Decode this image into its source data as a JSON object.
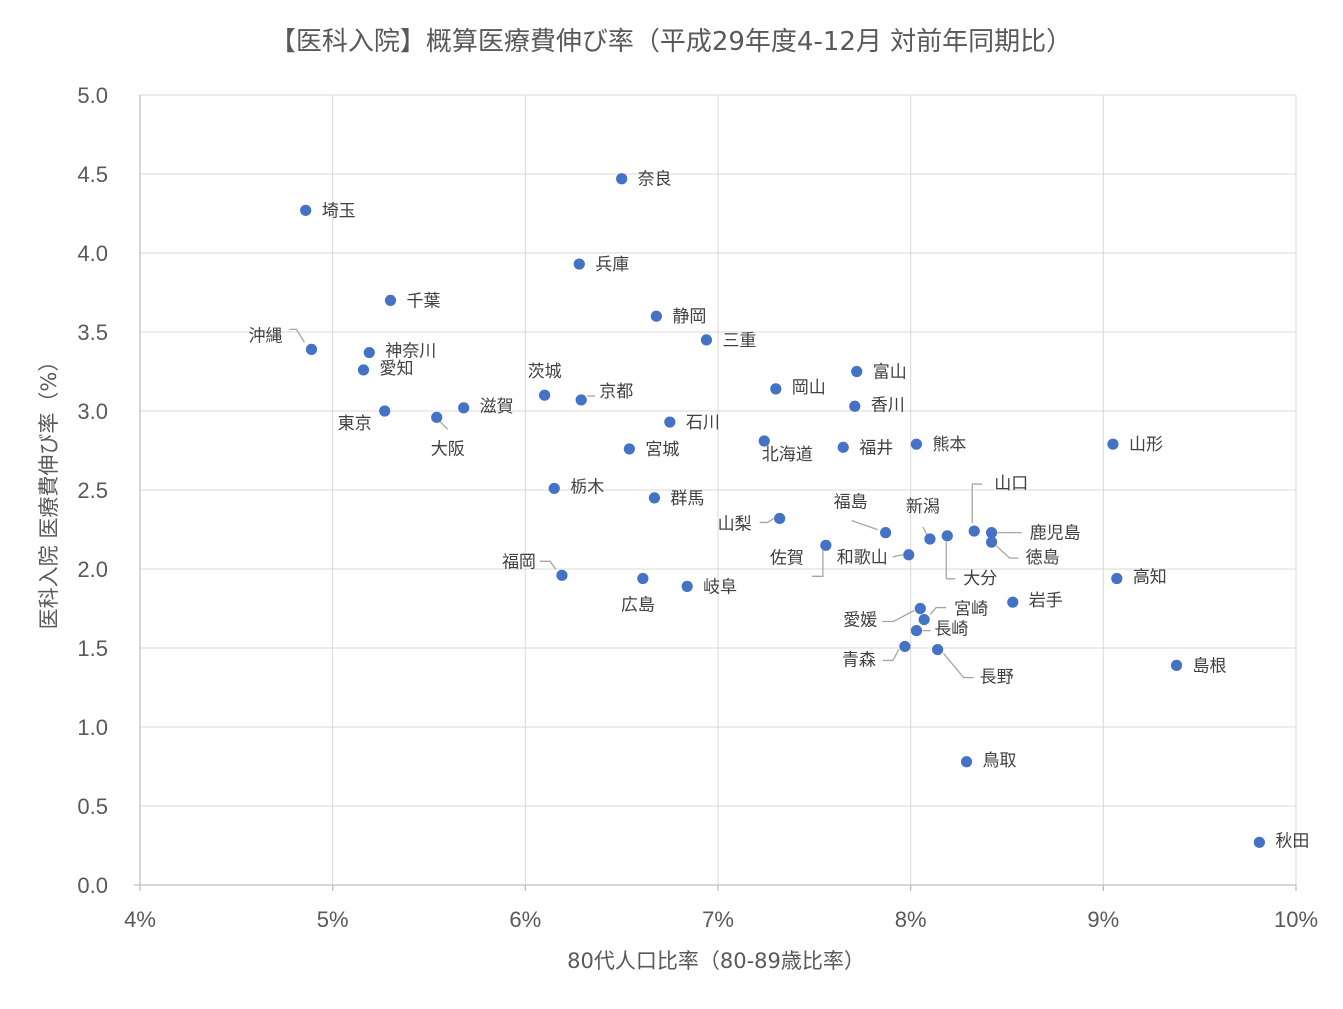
{
  "chart_data": {
    "type": "scatter",
    "title": "【医科入院】概算医療費伸び率（平成29年度4-12月 対前年同期比）",
    "xlabel": "80代人口比率（80-89歳比率）",
    "ylabel": "医科入院 医療費伸び率（%）",
    "xlim": [
      0.04,
      0.1
    ],
    "ylim": [
      0.0,
      5.0
    ],
    "x_ticks": [
      "4%",
      "5%",
      "6%",
      "7%",
      "8%",
      "9%",
      "10%"
    ],
    "y_ticks": [
      "0.0",
      "0.5",
      "1.0",
      "1.5",
      "2.0",
      "2.5",
      "3.0",
      "3.5",
      "4.0",
      "4.5",
      "5.0"
    ],
    "grid": true,
    "marker_color": "#4472C4",
    "points": [
      {
        "name": "奈良",
        "x": 0.065,
        "y": 4.47
      },
      {
        "name": "埼玉",
        "x": 0.0486,
        "y": 4.27
      },
      {
        "name": "兵庫",
        "x": 0.0628,
        "y": 3.93
      },
      {
        "name": "千葉",
        "x": 0.053,
        "y": 3.7
      },
      {
        "name": "静岡",
        "x": 0.0668,
        "y": 3.6
      },
      {
        "name": "三重",
        "x": 0.0694,
        "y": 3.45
      },
      {
        "name": "沖縄",
        "x": 0.0489,
        "y": 3.39
      },
      {
        "name": "神奈川",
        "x": 0.0519,
        "y": 3.37
      },
      {
        "name": "愛知",
        "x": 0.0516,
        "y": 3.26
      },
      {
        "name": "富山",
        "x": 0.0772,
        "y": 3.25
      },
      {
        "name": "茨城",
        "x": 0.061,
        "y": 3.1
      },
      {
        "name": "京都",
        "x": 0.0629,
        "y": 3.07
      },
      {
        "name": "岡山",
        "x": 0.073,
        "y": 3.14
      },
      {
        "name": "香川",
        "x": 0.0771,
        "y": 3.03
      },
      {
        "name": "滋賀",
        "x": 0.0568,
        "y": 3.02
      },
      {
        "name": "東京",
        "x": 0.0527,
        "y": 3.0
      },
      {
        "name": "大阪",
        "x": 0.0554,
        "y": 2.96
      },
      {
        "name": "石川",
        "x": 0.0675,
        "y": 2.93
      },
      {
        "name": "北海道",
        "x": 0.0724,
        "y": 2.81
      },
      {
        "name": "熊本",
        "x": 0.0803,
        "y": 2.79
      },
      {
        "name": "山形",
        "x": 0.0905,
        "y": 2.79
      },
      {
        "name": "福井",
        "x": 0.0765,
        "y": 2.77
      },
      {
        "name": "宮城",
        "x": 0.0654,
        "y": 2.76
      },
      {
        "name": "栃木",
        "x": 0.0615,
        "y": 2.51
      },
      {
        "name": "群馬",
        "x": 0.0667,
        "y": 2.45
      },
      {
        "name": "山梨",
        "x": 0.0732,
        "y": 2.32
      },
      {
        "name": "山口",
        "x": 0.0833,
        "y": 2.24
      },
      {
        "name": "鹿児島",
        "x": 0.0842,
        "y": 2.23
      },
      {
        "name": "福島",
        "x": 0.0787,
        "y": 2.23
      },
      {
        "name": "大分",
        "x": 0.0819,
        "y": 2.21
      },
      {
        "name": "新潟",
        "x": 0.081,
        "y": 2.19
      },
      {
        "name": "徳島",
        "x": 0.0842,
        "y": 2.17
      },
      {
        "name": "佐賀",
        "x": 0.0756,
        "y": 2.15
      },
      {
        "name": "和歌山",
        "x": 0.0799,
        "y": 2.09
      },
      {
        "name": "福岡",
        "x": 0.0619,
        "y": 1.96
      },
      {
        "name": "高知",
        "x": 0.0907,
        "y": 1.94
      },
      {
        "name": "広島",
        "x": 0.0661,
        "y": 1.94
      },
      {
        "name": "岐阜",
        "x": 0.0684,
        "y": 1.89
      },
      {
        "name": "岩手",
        "x": 0.0853,
        "y": 1.79
      },
      {
        "name": "愛媛",
        "x": 0.0805,
        "y": 1.75
      },
      {
        "name": "宮崎",
        "x": 0.0807,
        "y": 1.68
      },
      {
        "name": "長崎",
        "x": 0.0803,
        "y": 1.61
      },
      {
        "name": "青森",
        "x": 0.0797,
        "y": 1.51
      },
      {
        "name": "長野",
        "x": 0.0814,
        "y": 1.49
      },
      {
        "name": "島根",
        "x": 0.0938,
        "y": 1.39
      },
      {
        "name": "鳥取",
        "x": 0.0829,
        "y": 0.78
      },
      {
        "name": "秋田",
        "x": 0.0981,
        "y": 0.27
      }
    ]
  }
}
